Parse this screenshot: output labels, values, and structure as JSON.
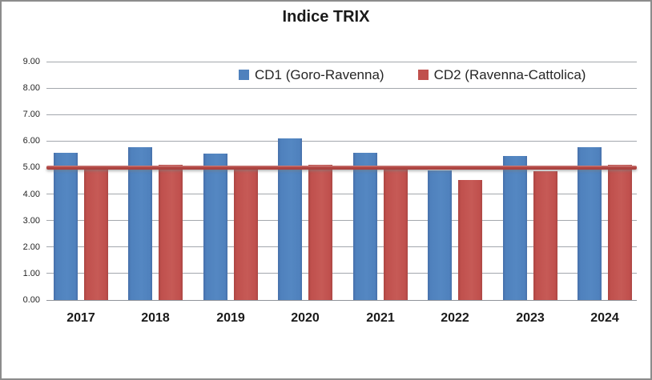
{
  "chart_data": {
    "type": "bar",
    "title": "Indice TRIX",
    "categories": [
      "2017",
      "2018",
      "2019",
      "2020",
      "2021",
      "2022",
      "2023",
      "2024"
    ],
    "series": [
      {
        "name": "CD1 (Goro-Ravenna)",
        "color": "#4F81BD",
        "values": [
          5.55,
          5.78,
          5.52,
          6.1,
          5.57,
          4.88,
          5.44,
          5.76
        ]
      },
      {
        "name": "CD2 (Ravenna-Cattolica)",
        "color": "#C0504D",
        "values": [
          4.91,
          5.1,
          4.91,
          5.11,
          5.0,
          4.52,
          4.86,
          5.1
        ]
      }
    ],
    "yticks": [
      "9.00",
      "8.00",
      "7.00",
      "6.00",
      "5.00",
      "4.00",
      "3.00",
      "2.00",
      "1.00",
      "0.00"
    ],
    "ylim": [
      0,
      9
    ],
    "grid": true,
    "legend_position": "top",
    "reference_line": {
      "value": 5.0,
      "color": "#B24744"
    }
  }
}
